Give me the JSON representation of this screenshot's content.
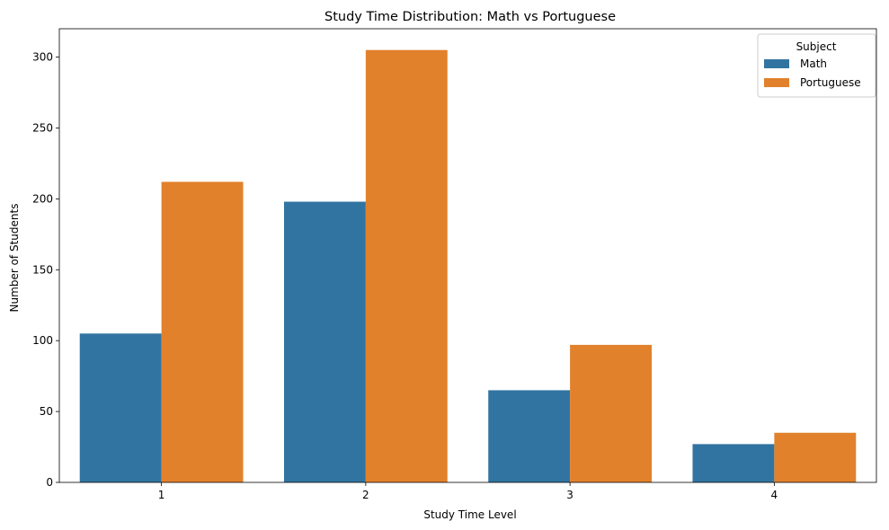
{
  "chart_data": {
    "type": "bar",
    "title": "Study Time Distribution: Math vs Portuguese",
    "xlabel": "Study Time Level",
    "ylabel": "Number of Students",
    "categories": [
      "1",
      "2",
      "3",
      "4"
    ],
    "series": [
      {
        "name": "Math",
        "values": [
          105,
          198,
          65,
          27
        ],
        "color": "#3274a1"
      },
      {
        "name": "Portuguese",
        "values": [
          212,
          305,
          97,
          35
        ],
        "color": "#e1812c"
      }
    ],
    "ylim": [
      0,
      320
    ],
    "yticks": [
      0,
      50,
      100,
      150,
      200,
      250,
      300
    ],
    "grid": false,
    "legend": {
      "title": "Subject",
      "placement": "top-right"
    }
  }
}
